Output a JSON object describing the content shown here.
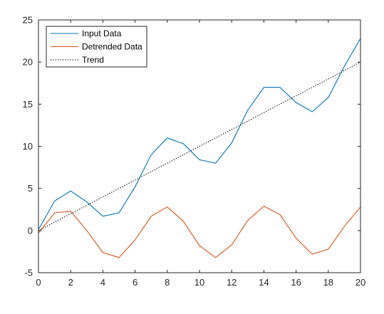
{
  "chart_data": {
    "type": "line",
    "title": "",
    "xlabel": "",
    "ylabel": "",
    "xlim": [
      0,
      20
    ],
    "ylim": [
      -5,
      25
    ],
    "xticks": [
      0,
      2,
      4,
      6,
      8,
      10,
      12,
      14,
      16,
      18,
      20
    ],
    "yticks": [
      -5,
      0,
      5,
      10,
      15,
      20,
      25
    ],
    "grid": false,
    "legend_position": "top-left",
    "x": [
      0,
      1,
      2,
      3,
      4,
      5,
      6,
      7,
      8,
      9,
      10,
      11,
      12,
      13,
      14,
      15,
      16,
      17,
      18,
      19,
      20
    ],
    "series": [
      {
        "name": "Input Data",
        "color": "#0072BD",
        "style": "solid",
        "values": [
          0.1,
          3.5,
          4.7,
          3.4,
          1.7,
          2.1,
          5.2,
          9.0,
          11.0,
          10.3,
          8.4,
          8.0,
          10.4,
          14.3,
          17.0,
          17.0,
          15.2,
          14.1,
          15.8,
          19.5,
          22.8
        ]
      },
      {
        "name": "Detrended Data",
        "color": "#D95319",
        "style": "solid",
        "values": [
          -0.3,
          2.1,
          2.3,
          0.0,
          -2.6,
          -3.2,
          -1.1,
          1.7,
          2.8,
          1.1,
          -1.8,
          -3.2,
          -1.7,
          1.2,
          2.9,
          1.9,
          -0.9,
          -2.8,
          -2.2,
          0.5,
          2.8
        ]
      },
      {
        "name": "Trend",
        "color": "#000000",
        "style": "dotted",
        "values": [
          0.0,
          1.0,
          2.0,
          3.0,
          4.0,
          5.0,
          6.0,
          7.0,
          8.0,
          9.0,
          10.0,
          11.0,
          12.0,
          13.0,
          14.0,
          15.0,
          16.0,
          17.0,
          18.0,
          19.0,
          20.0
        ]
      }
    ]
  }
}
